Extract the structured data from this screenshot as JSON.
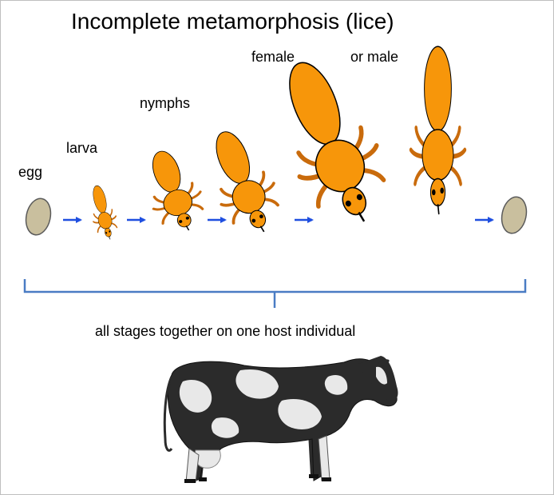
{
  "title": "Incomplete metamorphosis (lice)",
  "stages": {
    "egg": "egg",
    "larva": "larva",
    "nymphs": "nymphs",
    "female": "female",
    "male": "or  male"
  },
  "caption": "all stages together on one host individual",
  "colors": {
    "body": "#F7960A",
    "legs": "#C96B0C",
    "egg": "#C9BF9E",
    "arrow": "#1F4FE0",
    "bracket": "#4A7CC4",
    "cow_black": "#2B2B2B",
    "cow_white": "#E8E8E8"
  },
  "icons": [
    "egg-icon",
    "louse-icon",
    "arrow-right-icon",
    "cow-icon"
  ]
}
